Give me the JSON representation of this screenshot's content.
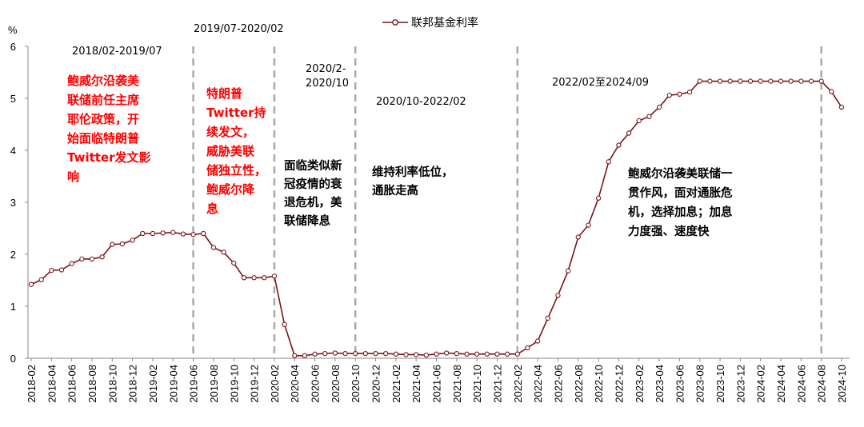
{
  "chart_data": {
    "type": "line",
    "ylabel": "%",
    "ylim": [
      0,
      6
    ],
    "yticks": [
      "0",
      "1",
      "2",
      "3",
      "4",
      "5",
      "6"
    ],
    "legend": {
      "placement": "top-center",
      "label": "联邦基金利率"
    },
    "series": [
      {
        "name": "联邦基金利率",
        "color": "#7b1416",
        "x": [
          "2018-02",
          "2018-03",
          "2018-04",
          "2018-05",
          "2018-06",
          "2018-07",
          "2018-08",
          "2018-09",
          "2018-10",
          "2018-11",
          "2018-12",
          "2019-01",
          "2019-02",
          "2019-03",
          "2019-04",
          "2019-05",
          "2019-06",
          "2019-07",
          "2019-08",
          "2019-09",
          "2019-10",
          "2019-11",
          "2019-12",
          "2020-01",
          "2020-02",
          "2020-03",
          "2020-04",
          "2020-05",
          "2020-06",
          "2020-07",
          "2020-08",
          "2020-09",
          "2020-10",
          "2020-11",
          "2020-12",
          "2021-01",
          "2021-02",
          "2021-03",
          "2021-04",
          "2021-05",
          "2021-06",
          "2021-07",
          "2021-08",
          "2021-09",
          "2021-10",
          "2021-11",
          "2021-12",
          "2022-01",
          "2022-02",
          "2022-03",
          "2022-04",
          "2022-05",
          "2022-06",
          "2022-07",
          "2022-08",
          "2022-09",
          "2022-10",
          "2022-11",
          "2022-12",
          "2023-01",
          "2023-02",
          "2023-03",
          "2023-04",
          "2023-05",
          "2023-06",
          "2023-07",
          "2023-08",
          "2023-09",
          "2023-10",
          "2023-11",
          "2023-12",
          "2024-01",
          "2024-02",
          "2024-03",
          "2024-04",
          "2024-05",
          "2024-06",
          "2024-07",
          "2024-08",
          "2024-09",
          "2024-10"
        ],
        "values": [
          1.42,
          1.51,
          1.69,
          1.7,
          1.82,
          1.91,
          1.91,
          1.95,
          2.19,
          2.2,
          2.27,
          2.4,
          2.4,
          2.41,
          2.42,
          2.39,
          2.38,
          2.4,
          2.13,
          2.04,
          1.83,
          1.55,
          1.55,
          1.55,
          1.58,
          0.65,
          0.05,
          0.05,
          0.08,
          0.09,
          0.1,
          0.09,
          0.09,
          0.09,
          0.09,
          0.09,
          0.08,
          0.07,
          0.07,
          0.06,
          0.08,
          0.1,
          0.09,
          0.08,
          0.08,
          0.08,
          0.08,
          0.08,
          0.08,
          0.2,
          0.33,
          0.77,
          1.21,
          1.68,
          2.33,
          2.56,
          3.08,
          3.78,
          4.1,
          4.33,
          4.57,
          4.65,
          4.83,
          5.06,
          5.08,
          5.12,
          5.33,
          5.33,
          5.33,
          5.33,
          5.33,
          5.33,
          5.33,
          5.33,
          5.33,
          5.33,
          5.33,
          5.33,
          5.33,
          5.13,
          4.83
        ]
      }
    ],
    "xtick_labels": [
      "2018-02",
      "2018-04",
      "2018-06",
      "2018-08",
      "2018-10",
      "2018-12",
      "2019-02",
      "2019-04",
      "2019-06",
      "2019-08",
      "2019-10",
      "2019-12",
      "2020-02",
      "2020-04",
      "2020-06",
      "2020-08",
      "2020-10",
      "2020-12",
      "2021-02",
      "2021-04",
      "2021-06",
      "2021-08",
      "2021-10",
      "2021-12",
      "2022-02",
      "2022-04",
      "2022-06",
      "2022-08",
      "2022-10",
      "2022-12",
      "2023-02",
      "2023-04",
      "2023-06",
      "2023-08",
      "2023-10",
      "2023-12",
      "2024-02",
      "2024-04",
      "2024-06",
      "2024-08",
      "2024-10"
    ],
    "dividers": [
      "2019-06",
      "2020-02",
      "2020-10",
      "2022-02",
      "2024-08"
    ],
    "periods": [
      {
        "label": "2018/02-2019/07"
      },
      {
        "label": "2019/07-2020/02"
      },
      {
        "label_lines": [
          "2020/2-",
          "2020/10"
        ]
      },
      {
        "label": "2020/10-2022/02"
      },
      {
        "label": "2022/02至2024/09"
      }
    ],
    "annotations": [
      {
        "color": "red",
        "lines": [
          "鲍威尔沿袭美",
          "联储前任主席",
          "耶伦政策，开",
          "始面临特朗普",
          "Twitter发文影",
          "响"
        ]
      },
      {
        "color": "red",
        "lines": [
          "特朗普",
          "Twitter持",
          "续发文，",
          "威胁美联",
          "储独立性，",
          "鲍威尔降",
          "息"
        ]
      },
      {
        "color": "black",
        "lines": [
          "面临类似新",
          "冠疫情的衰",
          "退危机，美",
          "联储降息"
        ]
      },
      {
        "color": "black",
        "lines": [
          "维持利率低位，",
          "通胀走高"
        ]
      },
      {
        "color": "black",
        "lines": [
          "鲍威尔沿袭美联储一",
          "贯作风，面对通胀危",
          "机，选择加息；加息",
          "力度强、速度快"
        ]
      }
    ]
  }
}
